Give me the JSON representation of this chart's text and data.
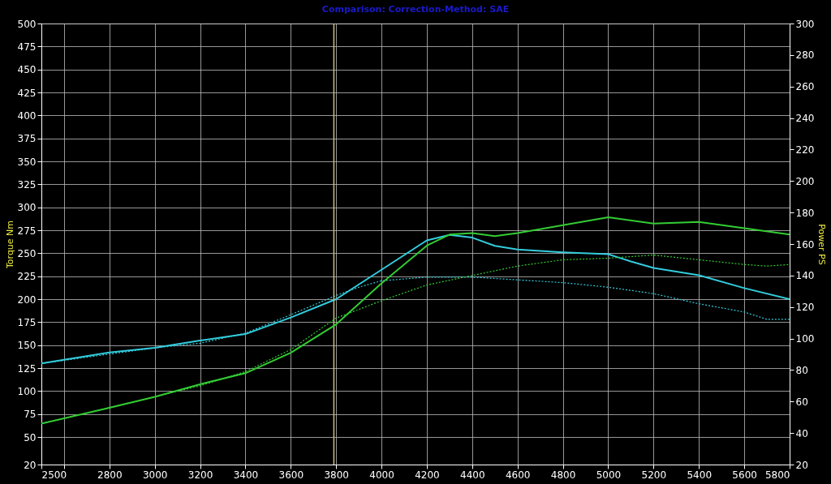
{
  "chart_data": {
    "type": "line",
    "title": "Comparison:     Correction-Method: SAE",
    "ylabel": "Torque Nm",
    "y2label": "Power PS",
    "xlim": [
      2500,
      5800
    ],
    "xticks": [
      2500,
      {
        "value": 2600,
        "label": null
      },
      2800,
      3000,
      3200,
      3400,
      3600,
      3800,
      4000,
      4200,
      4400,
      4600,
      4800,
      5000,
      5200,
      5400,
      5600,
      5800
    ],
    "ylim": [
      20,
      500
    ],
    "yticks": [
      20,
      50,
      75,
      100,
      125,
      150,
      175,
      200,
      225,
      250,
      275,
      300,
      325,
      350,
      375,
      400,
      425,
      450,
      475,
      500
    ],
    "y2lim": [
      20,
      300
    ],
    "y2ticks": [
      20,
      40,
      60,
      80,
      100,
      120,
      140,
      160,
      180,
      200,
      220,
      240,
      260,
      280,
      300
    ],
    "grid": true,
    "ref_lines": [
      {
        "axis": "x",
        "value": 3790,
        "color": "#c8c080"
      }
    ],
    "series": [
      {
        "color": "#33ccdd",
        "line_style": "solid",
        "x": [
          2500,
          2600,
          2800,
          3000,
          3200,
          3400,
          3600,
          3800,
          4000,
          4200,
          4300,
          4400,
          4500,
          4600,
          4800,
          5000,
          5100,
          5200,
          5400,
          5600,
          5800
        ],
        "values": [
          130,
          134,
          142,
          147,
          155,
          162,
          180,
          200,
          232,
          264,
          270,
          267,
          258,
          254,
          251,
          249,
          241,
          234,
          226,
          212,
          200
        ]
      },
      {
        "color": "#33ccdd",
        "line_style": "dotted",
        "x": [
          2500,
          3000,
          3200,
          3400,
          3600,
          3800,
          3900,
          4000,
          4200,
          4400,
          4600,
          4800,
          5000,
          5200,
          5400,
          5600,
          5700,
          5800
        ],
        "values": [
          130,
          147,
          152,
          163,
          183,
          204,
          213,
          220,
          224,
          224,
          221,
          218,
          213,
          206,
          195,
          186,
          178,
          178
        ]
      },
      {
        "color": "#33cc33",
        "line_style": "solid",
        "axis": "y2",
        "x": [
          2500,
          2800,
          3000,
          3200,
          3400,
          3600,
          3800,
          4000,
          4200,
          4300,
          4400,
          4500,
          4600,
          4800,
          5000,
          5200,
          5400,
          5600,
          5800
        ],
        "values": [
          46,
          56,
          63,
          71,
          78,
          91,
          109,
          135,
          159,
          166,
          167,
          165,
          167,
          172,
          177,
          173,
          174,
          170,
          166
        ]
      },
      {
        "color": "#33cc33",
        "line_style": "dotted",
        "axis": "y2",
        "x": [
          2500,
          3000,
          3200,
          3400,
          3600,
          3800,
          4000,
          4200,
          4400,
          4600,
          4800,
          5000,
          5200,
          5400,
          5600,
          5700,
          5800
        ],
        "values": [
          46,
          63,
          70,
          79,
          93,
          113,
          124,
          134,
          140,
          146,
          150,
          151,
          153,
          150,
          147,
          146,
          147
        ]
      }
    ]
  }
}
